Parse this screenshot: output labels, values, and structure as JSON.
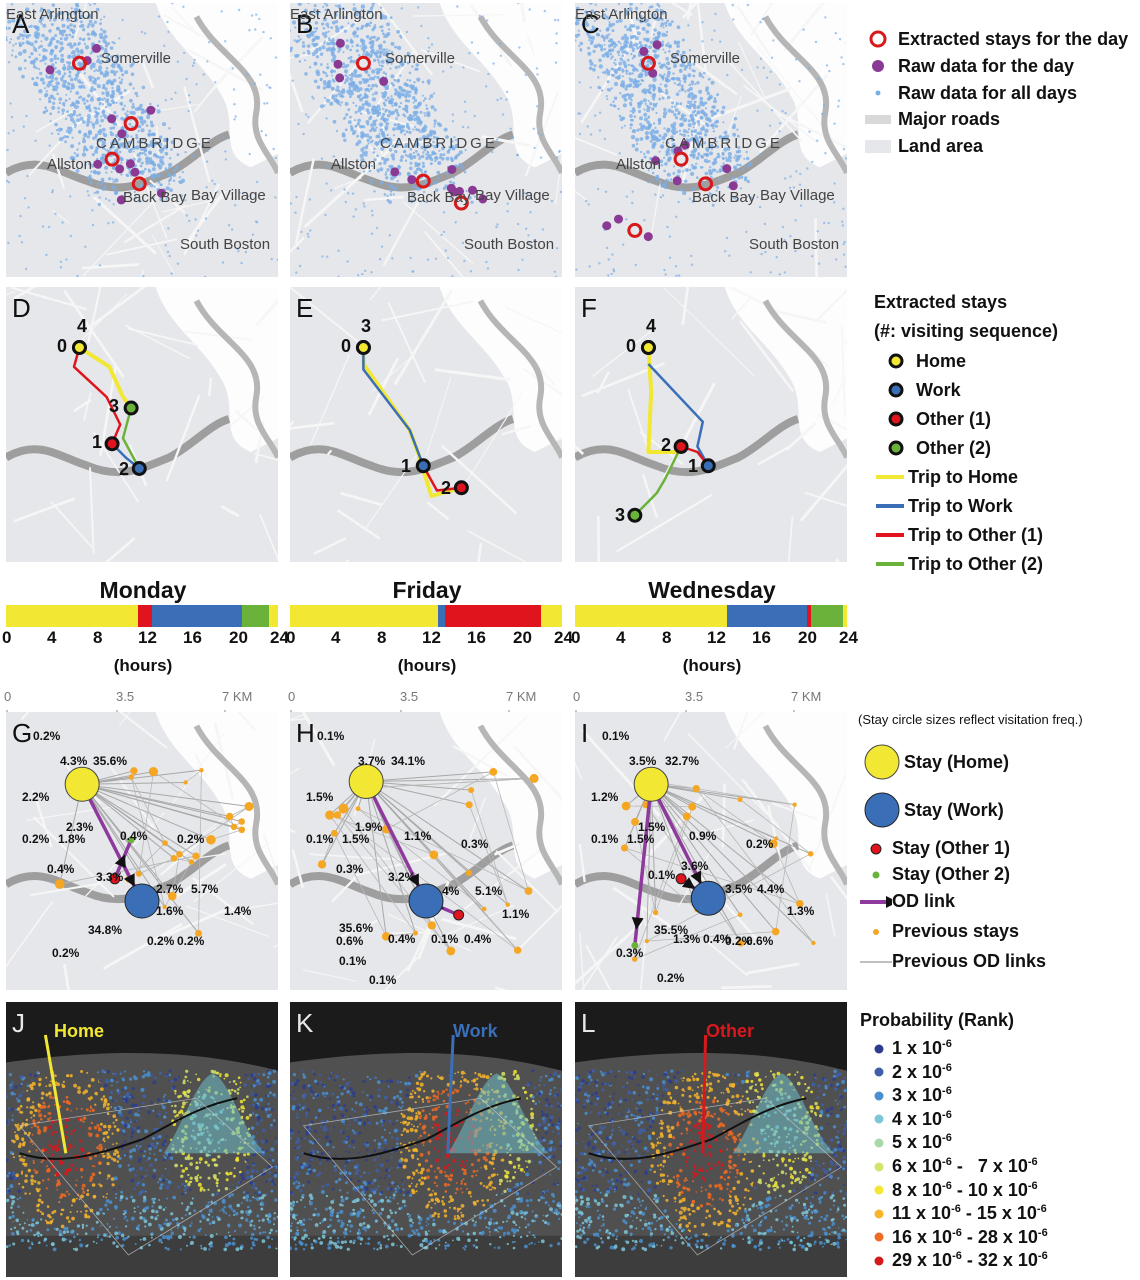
{
  "figure": {
    "panels_top": [
      {
        "label": "A"
      },
      {
        "label": "B"
      },
      {
        "label": "C"
      }
    ],
    "place_names": [
      "East Arlington",
      "Somerville",
      "CAMBRIDGE",
      "Allston",
      "Back Bay",
      "Bay Village",
      "South Boston"
    ],
    "legend_top": {
      "items": [
        "Extracted stays for the day",
        "Raw data for the day",
        "Raw data for all days",
        "Major roads",
        "Land area"
      ]
    },
    "panels_mid": [
      {
        "label": "D",
        "stays": [
          "0",
          "4",
          "3",
          "1",
          "2"
        ]
      },
      {
        "label": "E",
        "stays": [
          "0",
          "3",
          "1",
          "2"
        ]
      },
      {
        "label": "F",
        "stays": [
          "0",
          "4",
          "2",
          "1",
          "3"
        ]
      }
    ],
    "legend_mid": {
      "title1": "Extracted stays",
      "title2": "(#: visiting sequence)",
      "items": [
        "Home",
        "Work",
        "Other (1)",
        "Other (2)",
        "Trip to Home",
        "Trip to Work",
        "Trip to Other (1)",
        "Trip to Other (2)"
      ]
    },
    "colors": {
      "home": "#f2e733",
      "work": "#3a6fb8",
      "other1": "#e0141c",
      "other2": "#6ab23a",
      "od": "#8e3a9d",
      "raw_all": "#7aaee6",
      "raw_day": "#8b3a94",
      "stay_ring": "#d7191c",
      "prev": "#f5a623"
    },
    "timelines": [
      {
        "day": "Monday",
        "segments": [
          {
            "c": "home",
            "h": 12
          },
          {
            "c": "other1",
            "h": 1.3
          },
          {
            "c": "work",
            "h": 8.2
          },
          {
            "c": "other2",
            "h": 2.5
          },
          {
            "c": "home",
            "h": 0.8
          }
        ]
      },
      {
        "day": "Friday",
        "segments": [
          {
            "c": "home",
            "h": 13.4
          },
          {
            "c": "work",
            "h": 0.7
          },
          {
            "c": "other1",
            "h": 8.7
          },
          {
            "c": "home",
            "h": 1.9
          }
        ]
      },
      {
        "day": "Wednesday",
        "segments": [
          {
            "c": "home",
            "h": 13.8
          },
          {
            "c": "work",
            "h": 7.3
          },
          {
            "c": "other1",
            "h": 0.3
          },
          {
            "c": "other2",
            "h": 2.9
          },
          {
            "c": "home",
            "h": 0.4
          }
        ]
      }
    ],
    "hour_ticks": [
      "0",
      "4",
      "8",
      "12",
      "16",
      "20",
      "24"
    ],
    "hours_label": "(hours)",
    "scale": {
      "labels": [
        "0",
        "3.5",
        "7 KM"
      ]
    },
    "panels_od": [
      {
        "label": "G",
        "pcts": [
          "0.2%",
          "4.3%",
          "35.6%",
          "2.2%",
          "2.3%",
          "0.2%",
          "1.8%",
          "0.4%",
          "0.2%",
          "0.4%",
          "3.3%",
          "2.7%",
          "5.7%",
          "1.6%",
          "1.4%",
          "34.8%",
          "0.2%",
          "0.2%",
          "0.2%"
        ]
      },
      {
        "label": "H",
        "pcts": [
          "0.1%",
          "3.7%",
          "34.1%",
          "1.5%",
          "1.9%",
          "0.1%",
          "1.5%",
          "1.1%",
          "0.3%",
          "0.3%",
          "3.2%",
          "4%",
          "5.1%",
          "35.6%",
          "1.1%",
          "0.6%",
          "0.4%",
          "0.1%",
          "0.4%",
          "0.1%",
          "0.1%"
        ]
      },
      {
        "label": "I",
        "pcts": [
          "0.1%",
          "3.5%",
          "32.7%",
          "1.2%",
          "1.5%",
          "0.1%",
          "1.5%",
          "0.9%",
          "0.2%",
          "3.6%",
          "0.1%",
          "3.5%",
          "4.4%",
          "1.3%",
          "35.5%",
          "1.3%",
          "0.4%",
          "0.2%",
          "0.6%",
          "0.3%",
          "0.2%"
        ]
      }
    ],
    "legend_od": {
      "note": "(Stay circle sizes reflect visitation freq.)",
      "items": [
        "Stay (Home)",
        "Stay (Work)",
        "Stay (Other 1)",
        "Stay (Other 2)",
        "OD link",
        "Previous stays",
        "Previous OD links"
      ]
    },
    "panels_3d": [
      {
        "label": "J",
        "peak": "Home"
      },
      {
        "label": "K",
        "peak": "Work"
      },
      {
        "label": "L",
        "peak": "Other"
      }
    ],
    "legend_prob": {
      "title": "Probability (Rank)",
      "items": [
        {
          "text": "1 x 10",
          "exp": "-6",
          "text2": "",
          "exp2": "",
          "color": "#2b3c8f"
        },
        {
          "text": "2 x 10",
          "exp": "-6",
          "text2": "",
          "exp2": "",
          "color": "#3e5fa8"
        },
        {
          "text": "3 x 10",
          "exp": "-6",
          "text2": "",
          "exp2": "",
          "color": "#4a8fcf"
        },
        {
          "text": "4 x 10",
          "exp": "-6",
          "text2": "",
          "exp2": "",
          "color": "#7dc6d8"
        },
        {
          "text": "5 x 10",
          "exp": "-6",
          "text2": "",
          "exp2": "",
          "color": "#a8d8a8"
        },
        {
          "text": "6 x 10",
          "exp": "-6",
          "text2": " -   7 x 10",
          "exp2": "-6",
          "color": "#d6e36a"
        },
        {
          "text": "8 x 10",
          "exp": "-6",
          "text2": " - 10 x 10",
          "exp2": "-6",
          "color": "#f2e733"
        },
        {
          "text": "11 x 10",
          "exp": "-6",
          "text2": " - 15 x 10",
          "exp2": "-6",
          "color": "#f7b52c"
        },
        {
          "text": "16 x 10",
          "exp": "-6",
          "text2": " - 28 x 10",
          "exp2": "-6",
          "color": "#ef6a22"
        },
        {
          "text": "29 x 10",
          "exp": "-6",
          "text2": " - 32 x 10",
          "exp2": "-6",
          "color": "#d7191c"
        }
      ]
    }
  }
}
